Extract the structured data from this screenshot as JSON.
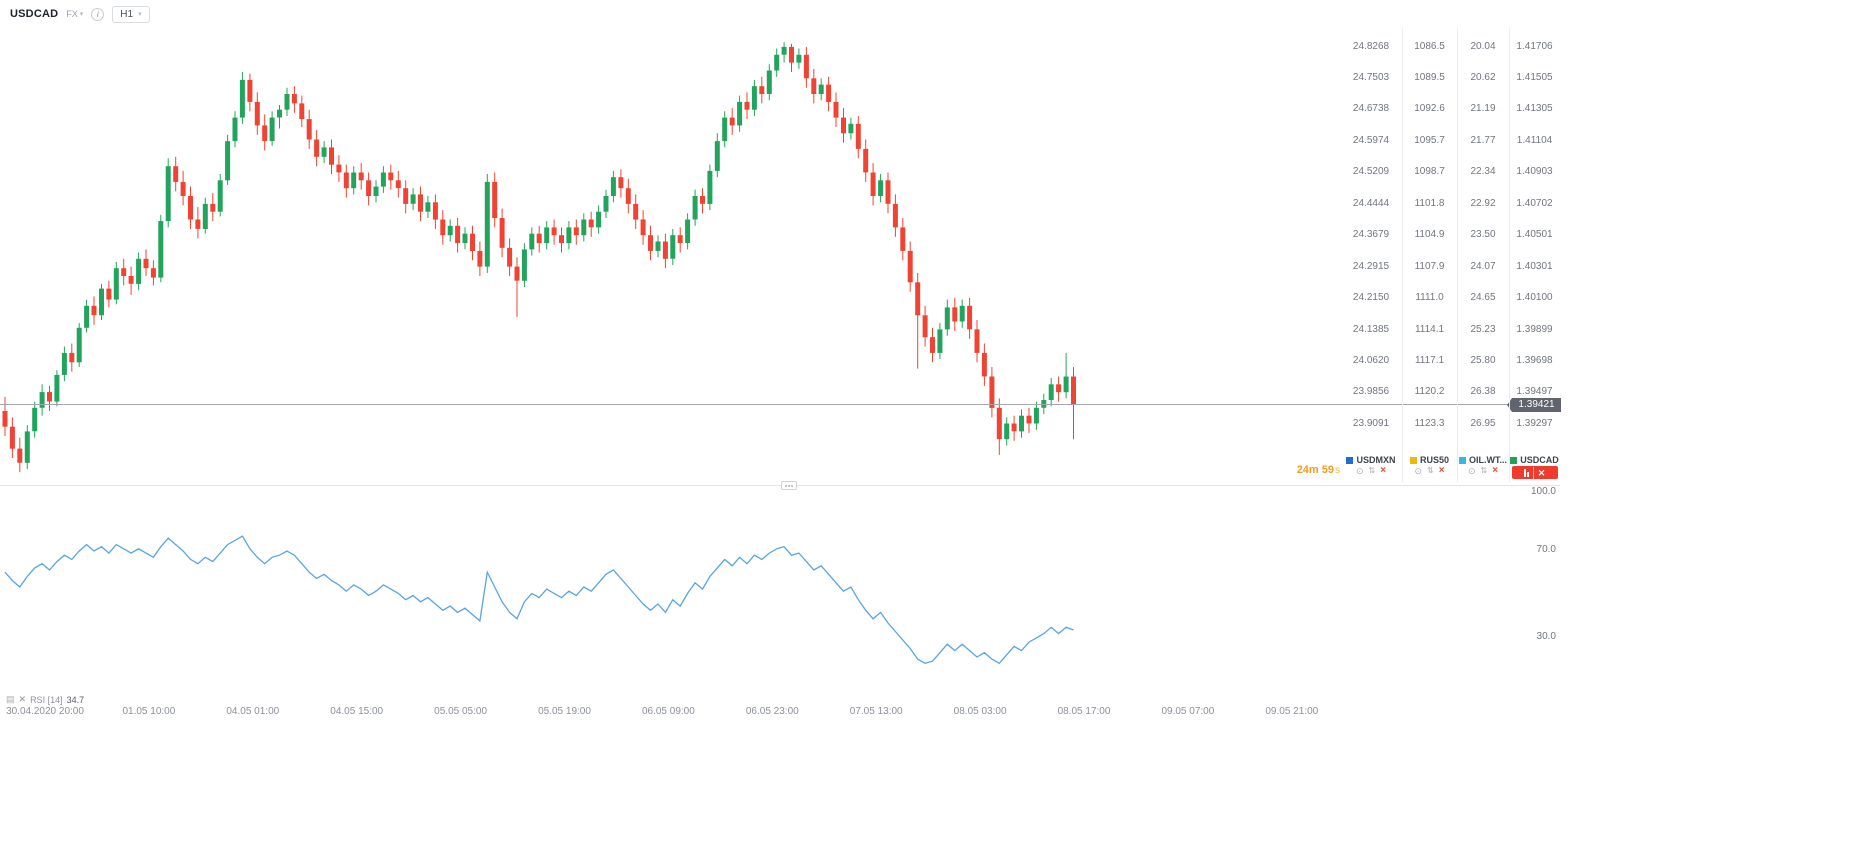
{
  "header": {
    "symbol": "USDCAD",
    "market": "FX",
    "timeframe": "H1"
  },
  "price_badge": "1.39421",
  "timer": {
    "value": "24m 59",
    "suffix": "s"
  },
  "price_scales": {
    "usdmxn": [
      "24.8268",
      "24.7503",
      "24.6738",
      "24.5974",
      "24.5209",
      "24.4444",
      "24.3679",
      "24.2915",
      "24.2150",
      "24.1385",
      "24.0620",
      "23.9856",
      "23.9091"
    ],
    "rus50": [
      "1086.5",
      "1089.5",
      "1092.6",
      "1095.7",
      "1098.7",
      "1101.8",
      "1104.9",
      "1107.9",
      "1111.0",
      "1114.1",
      "1117.1",
      "1120.2",
      "1123.3"
    ],
    "oil_wti": [
      "20.04",
      "20.62",
      "21.19",
      "21.77",
      "22.34",
      "22.92",
      "23.50",
      "24.07",
      "24.65",
      "25.23",
      "25.80",
      "26.38",
      "26.95"
    ],
    "usdcad": [
      "1.41706",
      "1.41505",
      "1.41305",
      "1.41104",
      "1.40903",
      "1.40702",
      "1.40501",
      "1.40301",
      "1.40100",
      "1.39899",
      "1.39698",
      "1.39497",
      "1.39297"
    ]
  },
  "symbol_tabs": [
    {
      "name": "USDMXN",
      "color": "#1f6cd6",
      "active": false
    },
    {
      "name": "RUS50",
      "color": "#f2b705",
      "active": false
    },
    {
      "name": "OIL.WT...",
      "color": "#3ab5e5",
      "active": false
    },
    {
      "name": "USDCAD",
      "color": "#22a157",
      "active": true
    }
  ],
  "rsi_panel": {
    "name": "RSI [14]",
    "value": "34.7",
    "ticks": [
      "100.0",
      "70.0",
      "30.0"
    ]
  },
  "chart_data": [
    {
      "type": "candlestick",
      "symbol": "USDCAD",
      "timeframe": "H1",
      "up_color": "#23a45c",
      "down_color": "#ef4433",
      "last_price": 1.39421,
      "y_axis": {
        "min": 1.39297,
        "max": 1.41706
      },
      "x_labels": [
        "30.04.2020 20:00",
        "01.05 10:00",
        "04.05 01:00",
        "04.05 15:00",
        "05.05 05:00",
        "05.05 19:00",
        "06.05 09:00",
        "06.05 23:00",
        "07.05 13:00",
        "08.05 03:00",
        "08.05 17:00",
        "09.05 07:00",
        "09.05 21:00"
      ],
      "candles": [
        [
          1.3938,
          1.3947,
          1.3922,
          1.3928
        ],
        [
          1.3928,
          1.3934,
          1.3908,
          1.3914
        ],
        [
          1.3914,
          1.3921,
          1.3899,
          1.3905
        ],
        [
          1.3905,
          1.3929,
          1.3901,
          1.3925
        ],
        [
          1.3925,
          1.3944,
          1.3921,
          1.394
        ],
        [
          1.394,
          1.3955,
          1.3935,
          1.395
        ],
        [
          1.395,
          1.3954,
          1.3938,
          1.3944
        ],
        [
          1.3944,
          1.3964,
          1.3941,
          1.3961
        ],
        [
          1.3961,
          1.3979,
          1.3957,
          1.3975
        ],
        [
          1.3975,
          1.3981,
          1.3963,
          1.3969
        ],
        [
          1.3969,
          1.3994,
          1.3966,
          1.3991
        ],
        [
          1.3991,
          1.4009,
          1.3988,
          1.4005
        ],
        [
          1.4005,
          1.4011,
          1.3993,
          1.3999
        ],
        [
          1.3999,
          1.4019,
          1.3996,
          1.4016
        ],
        [
          1.4016,
          1.4021,
          1.4004,
          1.4009
        ],
        [
          1.4009,
          1.4033,
          1.4006,
          1.4029
        ],
        [
          1.4029,
          1.4035,
          1.4018,
          1.4024
        ],
        [
          1.4024,
          1.403,
          1.4012,
          1.4019
        ],
        [
          1.4019,
          1.4039,
          1.4015,
          1.4035
        ],
        [
          1.4035,
          1.4041,
          1.4024,
          1.4029
        ],
        [
          1.4029,
          1.4034,
          1.4018,
          1.4023
        ],
        [
          1.4023,
          1.4063,
          1.402,
          1.4059
        ],
        [
          1.4059,
          1.4099,
          1.4055,
          1.4094
        ],
        [
          1.4094,
          1.41,
          1.4078,
          1.4084
        ],
        [
          1.4084,
          1.4091,
          1.4069,
          1.4075
        ],
        [
          1.4075,
          1.4081,
          1.4054,
          1.406
        ],
        [
          1.406,
          1.4068,
          1.4048,
          1.4054
        ],
        [
          1.4054,
          1.4074,
          1.4051,
          1.407
        ],
        [
          1.407,
          1.4077,
          1.4059,
          1.4065
        ],
        [
          1.4065,
          1.4089,
          1.4062,
          1.4085
        ],
        [
          1.4085,
          1.4114,
          1.4082,
          1.411
        ],
        [
          1.411,
          1.4129,
          1.4106,
          1.4125
        ],
        [
          1.4125,
          1.4154,
          1.4121,
          1.4149
        ],
        [
          1.4149,
          1.4153,
          1.4129,
          1.4135
        ],
        [
          1.4135,
          1.4141,
          1.4114,
          1.412
        ],
        [
          1.412,
          1.4127,
          1.4104,
          1.411
        ],
        [
          1.411,
          1.4129,
          1.4107,
          1.4125
        ],
        [
          1.4125,
          1.4133,
          1.4118,
          1.413
        ],
        [
          1.413,
          1.4144,
          1.4126,
          1.414
        ],
        [
          1.414,
          1.4145,
          1.4128,
          1.4134
        ],
        [
          1.4134,
          1.4139,
          1.4119,
          1.4124
        ],
        [
          1.4124,
          1.413,
          1.4105,
          1.4111
        ],
        [
          1.4111,
          1.4117,
          1.4094,
          1.41
        ],
        [
          1.41,
          1.411,
          1.4096,
          1.4106
        ],
        [
          1.4106,
          1.4111,
          1.4089,
          1.4095
        ],
        [
          1.4095,
          1.4101,
          1.4084,
          1.409
        ],
        [
          1.409,
          1.4095,
          1.4074,
          1.408
        ],
        [
          1.408,
          1.4094,
          1.4076,
          1.409
        ],
        [
          1.409,
          1.4096,
          1.4079,
          1.4085
        ],
        [
          1.4085,
          1.409,
          1.4069,
          1.4075
        ],
        [
          1.4075,
          1.4085,
          1.4071,
          1.4081
        ],
        [
          1.4081,
          1.4094,
          1.4077,
          1.409
        ],
        [
          1.409,
          1.4095,
          1.4079,
          1.4085
        ],
        [
          1.4085,
          1.4091,
          1.4074,
          1.408
        ],
        [
          1.408,
          1.4085,
          1.4064,
          1.407
        ],
        [
          1.407,
          1.408,
          1.4066,
          1.4076
        ],
        [
          1.4076,
          1.4081,
          1.4059,
          1.4065
        ],
        [
          1.4065,
          1.4075,
          1.4061,
          1.4071
        ],
        [
          1.4071,
          1.4076,
          1.4054,
          1.406
        ],
        [
          1.406,
          1.4066,
          1.4044,
          1.405
        ],
        [
          1.405,
          1.406,
          1.4046,
          1.4056
        ],
        [
          1.4056,
          1.4061,
          1.4039,
          1.4045
        ],
        [
          1.4045,
          1.4055,
          1.4041,
          1.4051
        ],
        [
          1.4051,
          1.4056,
          1.4034,
          1.404
        ],
        [
          1.404,
          1.4046,
          1.4024,
          1.403
        ],
        [
          1.403,
          1.4089,
          1.4026,
          1.4084
        ],
        [
          1.4084,
          1.409,
          1.4055,
          1.4061
        ],
        [
          1.4061,
          1.4067,
          1.4036,
          1.4042
        ],
        [
          1.4042,
          1.4048,
          1.4024,
          1.403
        ],
        [
          1.403,
          1.4036,
          1.3998,
          1.4021
        ],
        [
          1.4021,
          1.4045,
          1.4017,
          1.4041
        ],
        [
          1.4041,
          1.4055,
          1.4037,
          1.4051
        ],
        [
          1.4051,
          1.4056,
          1.4039,
          1.4045
        ],
        [
          1.4045,
          1.4059,
          1.4041,
          1.4055
        ],
        [
          1.4055,
          1.406,
          1.4044,
          1.405
        ],
        [
          1.405,
          1.4055,
          1.4039,
          1.4045
        ],
        [
          1.4045,
          1.4059,
          1.4041,
          1.4055
        ],
        [
          1.4055,
          1.406,
          1.4044,
          1.405
        ],
        [
          1.405,
          1.4064,
          1.4046,
          1.406
        ],
        [
          1.406,
          1.4065,
          1.4049,
          1.4055
        ],
        [
          1.4055,
          1.4069,
          1.4051,
          1.4065
        ],
        [
          1.4065,
          1.4079,
          1.4061,
          1.4075
        ],
        [
          1.4075,
          1.4091,
          1.4071,
          1.4087
        ],
        [
          1.4087,
          1.4092,
          1.4074,
          1.408
        ],
        [
          1.408,
          1.4086,
          1.4064,
          1.407
        ],
        [
          1.407,
          1.4076,
          1.4054,
          1.406
        ],
        [
          1.406,
          1.4066,
          1.4044,
          1.405
        ],
        [
          1.405,
          1.4056,
          1.4034,
          1.404
        ],
        [
          1.404,
          1.405,
          1.4036,
          1.4046
        ],
        [
          1.4046,
          1.4051,
          1.4029,
          1.4035
        ],
        [
          1.4035,
          1.4054,
          1.4031,
          1.405
        ],
        [
          1.405,
          1.4055,
          1.4039,
          1.4045
        ],
        [
          1.4045,
          1.4064,
          1.4041,
          1.406
        ],
        [
          1.406,
          1.4079,
          1.4056,
          1.4075
        ],
        [
          1.4075,
          1.408,
          1.4064,
          1.407
        ],
        [
          1.407,
          1.4095,
          1.4066,
          1.4091
        ],
        [
          1.4091,
          1.4115,
          1.4087,
          1.411
        ],
        [
          1.411,
          1.4129,
          1.4106,
          1.4125
        ],
        [
          1.4125,
          1.4131,
          1.4114,
          1.412
        ],
        [
          1.412,
          1.4139,
          1.4116,
          1.4135
        ],
        [
          1.4135,
          1.4141,
          1.4124,
          1.413
        ],
        [
          1.413,
          1.4149,
          1.4126,
          1.4145
        ],
        [
          1.4145,
          1.4151,
          1.4134,
          1.414
        ],
        [
          1.414,
          1.4159,
          1.4136,
          1.4155
        ],
        [
          1.4155,
          1.4169,
          1.4151,
          1.4165
        ],
        [
          1.4165,
          1.4173,
          1.416,
          1.417
        ],
        [
          1.417,
          1.4172,
          1.4154,
          1.416
        ],
        [
          1.416,
          1.4169,
          1.4156,
          1.4165
        ],
        [
          1.4165,
          1.417,
          1.4144,
          1.415
        ],
        [
          1.415,
          1.4156,
          1.4134,
          1.414
        ],
        [
          1.414,
          1.415,
          1.4136,
          1.4146
        ],
        [
          1.4146,
          1.4151,
          1.4129,
          1.4135
        ],
        [
          1.4135,
          1.4141,
          1.4119,
          1.4125
        ],
        [
          1.4125,
          1.4131,
          1.4109,
          1.4115
        ],
        [
          1.4115,
          1.4125,
          1.4111,
          1.4121
        ],
        [
          1.4121,
          1.4126,
          1.4099,
          1.4105
        ],
        [
          1.4105,
          1.4111,
          1.4084,
          1.409
        ],
        [
          1.409,
          1.4096,
          1.4069,
          1.4075
        ],
        [
          1.4075,
          1.4089,
          1.4071,
          1.4085
        ],
        [
          1.4085,
          1.409,
          1.4064,
          1.407
        ],
        [
          1.407,
          1.4076,
          1.4049,
          1.4055
        ],
        [
          1.4055,
          1.4061,
          1.4034,
          1.404
        ],
        [
          1.404,
          1.4046,
          1.4014,
          1.402
        ],
        [
          1.402,
          1.4026,
          1.3965,
          1.3999
        ],
        [
          1.3999,
          1.4005,
          1.3979,
          1.3985
        ],
        [
          1.3985,
          1.3991,
          1.3969,
          1.3975
        ],
        [
          1.3975,
          1.3994,
          1.3971,
          1.399
        ],
        [
          1.399,
          1.4009,
          1.3986,
          1.4004
        ],
        [
          1.4004,
          1.401,
          1.3989,
          1.3995
        ],
        [
          1.3995,
          1.4009,
          1.3991,
          1.4005
        ],
        [
          1.4005,
          1.401,
          1.3984,
          1.399
        ],
        [
          1.399,
          1.3996,
          1.3969,
          1.3975
        ],
        [
          1.3975,
          1.3981,
          1.3954,
          1.396
        ],
        [
          1.396,
          1.3966,
          1.3934,
          1.394
        ],
        [
          1.394,
          1.3946,
          1.391,
          1.392
        ],
        [
          1.392,
          1.3934,
          1.3916,
          1.393
        ],
        [
          1.393,
          1.3935,
          1.3919,
          1.3925
        ],
        [
          1.3925,
          1.3939,
          1.3921,
          1.3935
        ],
        [
          1.3935,
          1.394,
          1.3924,
          1.393
        ],
        [
          1.393,
          1.3944,
          1.3926,
          1.394
        ],
        [
          1.394,
          1.3949,
          1.3936,
          1.3945
        ],
        [
          1.3945,
          1.3959,
          1.3941,
          1.3955
        ],
        [
          1.3955,
          1.396,
          1.3944,
          1.395
        ],
        [
          1.395,
          1.3975,
          1.3946,
          1.396
        ],
        [
          1.396,
          1.3966,
          1.392,
          1.39421
        ]
      ]
    },
    {
      "type": "line",
      "name": "RSI [14]",
      "current": "34.7",
      "color": "#57a5e0",
      "y_ticks": [
        100,
        70,
        30
      ],
      "values": [
        62,
        58,
        55,
        60,
        64,
        66,
        63,
        67,
        70,
        68,
        72,
        75,
        72,
        74,
        71,
        75,
        73,
        71,
        73,
        71,
        69,
        74,
        78,
        75,
        72,
        68,
        66,
        69,
        67,
        71,
        75,
        77,
        79,
        73,
        69,
        66,
        69,
        70,
        72,
        70,
        66,
        62,
        59,
        61,
        58,
        56,
        53,
        56,
        54,
        51,
        53,
        56,
        54,
        52,
        49,
        51,
        48,
        50,
        47,
        44,
        46,
        43,
        45,
        42,
        39,
        62,
        55,
        48,
        43,
        40,
        48,
        52,
        50,
        54,
        52,
        50,
        53,
        51,
        55,
        53,
        57,
        61,
        63,
        59,
        55,
        51,
        47,
        44,
        47,
        43,
        49,
        46,
        52,
        57,
        54,
        60,
        64,
        68,
        65,
        69,
        66,
        70,
        68,
        71,
        73,
        74,
        70,
        71,
        67,
        63,
        65,
        61,
        57,
        53,
        55,
        49,
        44,
        40,
        43,
        38,
        34,
        30,
        26,
        21,
        19,
        20,
        24,
        28,
        25,
        28,
        25,
        22,
        24,
        21,
        19,
        23,
        27,
        25,
        29,
        31,
        33,
        36,
        33,
        36,
        34.7
      ]
    }
  ]
}
